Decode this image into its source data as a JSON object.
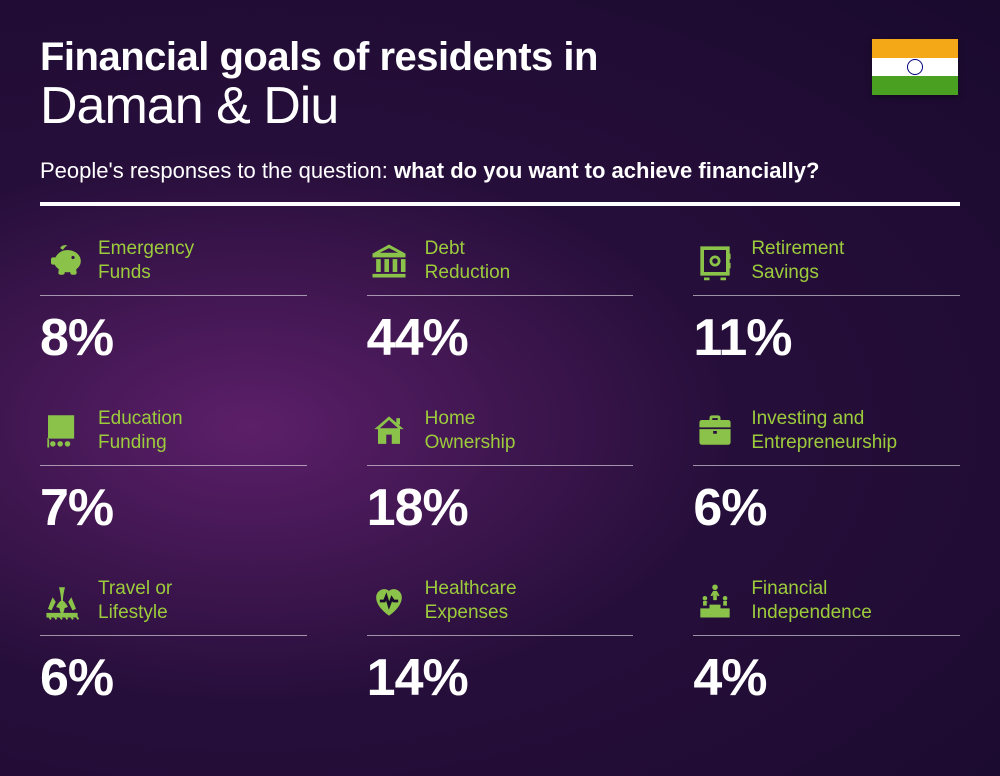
{
  "header": {
    "title_line1": "Financial goals of residents in",
    "title_line2": "Daman & Diu",
    "subtitle_prefix": "People's responses to the question: ",
    "subtitle_bold": "what do you want to achieve financially?"
  },
  "flag": {
    "top_color": "#f4a817",
    "mid_color": "#ffffff",
    "bot_color": "#4aa020",
    "chakra_color": "#000080"
  },
  "colors": {
    "accent": "#9ccc3c",
    "icon": "#8bc34a",
    "text": "#ffffff",
    "divider": "#ffffff"
  },
  "items": [
    {
      "label": "Emergency\nFunds",
      "value": "8%",
      "icon": "piggy"
    },
    {
      "label": "Debt\nReduction",
      "value": "44%",
      "icon": "bank"
    },
    {
      "label": "Retirement\nSavings",
      "value": "11%",
      "icon": "safe"
    },
    {
      "label": "Education\nFunding",
      "value": "7%",
      "icon": "education"
    },
    {
      "label": "Home\nOwnership",
      "value": "18%",
      "icon": "home"
    },
    {
      "label": "Investing and\nEntrepreneurship",
      "value": "6%",
      "icon": "briefcase"
    },
    {
      "label": "Travel or\nLifestyle",
      "value": "6%",
      "icon": "travel"
    },
    {
      "label": "Healthcare\nExpenses",
      "value": "14%",
      "icon": "health"
    },
    {
      "label": "Financial\nIndependence",
      "value": "4%",
      "icon": "podium"
    }
  ]
}
